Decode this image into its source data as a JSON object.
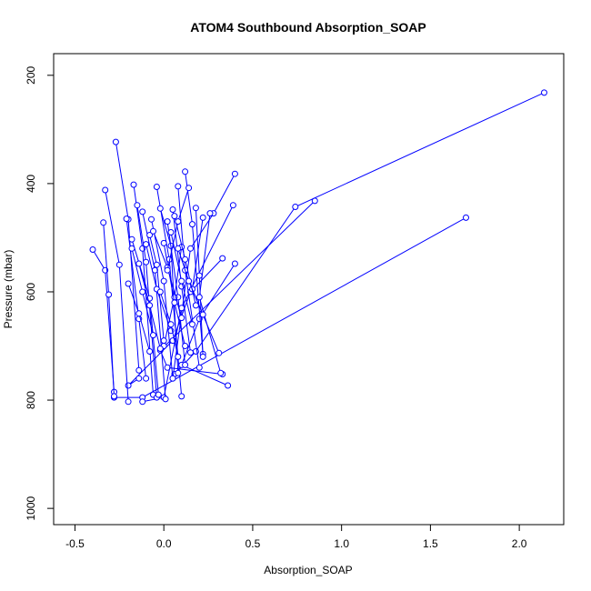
{
  "chart_data": {
    "type": "line",
    "title": "ATOM4 Southbound Absorption_SOAP",
    "xlabel": "Absorption_SOAP",
    "ylabel": "Pressure (mbar)",
    "xlim": [
      -0.62,
      2.25
    ],
    "ylim": [
      1030,
      160
    ],
    "y_reversed": true,
    "x_ticks": [
      -0.5,
      0.0,
      0.5,
      1.0,
      1.5,
      2.0
    ],
    "x_tick_labels": [
      "-0.5",
      "0.0",
      "0.5",
      "1.0",
      "1.5",
      "2.0"
    ],
    "y_ticks": [
      200,
      400,
      600,
      800,
      1000
    ],
    "y_tick_labels": [
      "200",
      "400",
      "600",
      "800",
      "1000"
    ],
    "grid": false,
    "legend": "none",
    "line_color": "#0000ff",
    "marker": "open-circle",
    "series": [
      {
        "x": [
          1.7,
          -0.12,
          -0.28
        ],
        "y": [
          463,
          795,
          795
        ]
      },
      {
        "x": [
          0.85,
          -0.02,
          0.02,
          0.33
        ],
        "y": [
          432,
          708,
          740,
          752
        ]
      },
      {
        "x": [
          2.14,
          0.74,
          0.18,
          0.06
        ],
        "y": [
          232,
          443,
          710,
          752
        ]
      },
      {
        "x": [
          0.4,
          0.28,
          0.15,
          0.05
        ],
        "y": [
          382,
          455,
          520,
          760
        ]
      },
      {
        "x": [
          0.39,
          0.1,
          0.0,
          -0.12
        ],
        "y": [
          440,
          630,
          795,
          803
        ]
      },
      {
        "x": [
          0.4,
          0.2,
          0.1,
          0.36
        ],
        "y": [
          548,
          650,
          735,
          773
        ]
      },
      {
        "x": [
          0.33,
          0.15,
          0.05,
          -0.2,
          -0.14
        ],
        "y": [
          538,
          600,
          690,
          773,
          760
        ]
      },
      {
        "x": [
          -0.4,
          -0.33,
          -0.28
        ],
        "y": [
          522,
          560,
          785
        ]
      },
      {
        "x": [
          -0.34,
          -0.31,
          -0.28
        ],
        "y": [
          472,
          605,
          793
        ]
      },
      {
        "x": [
          -0.33,
          -0.25,
          -0.2
        ],
        "y": [
          412,
          550,
          803
        ]
      },
      {
        "x": [
          -0.27,
          -0.2,
          -0.14
        ],
        "y": [
          323,
          466,
          745
        ]
      },
      {
        "x": [
          -0.17,
          -0.12,
          -0.06
        ],
        "y": [
          402,
          520,
          790
        ]
      },
      {
        "x": [
          -0.15,
          -0.1,
          -0.04
        ],
        "y": [
          440,
          545,
          795
        ]
      },
      {
        "x": [
          -0.18,
          -0.08,
          -0.03
        ],
        "y": [
          503,
          612,
          790
        ]
      },
      {
        "x": [
          -0.12,
          -0.05,
          0.01
        ],
        "y": [
          452,
          560,
          798
        ]
      },
      {
        "x": [
          -0.07,
          0.0,
          0.05
        ],
        "y": [
          466,
          580,
          760
        ]
      },
      {
        "x": [
          -0.04,
          0.03,
          0.1
        ],
        "y": [
          406,
          540,
          793
        ]
      },
      {
        "x": [
          -0.02,
          0.04,
          0.08
        ],
        "y": [
          446,
          515,
          750
        ]
      },
      {
        "x": [
          0.02,
          0.08,
          0.12
        ],
        "y": [
          470,
          610,
          735
        ]
      },
      {
        "x": [
          0.05,
          0.1,
          0.15
        ],
        "y": [
          448,
          590,
          712
        ]
      },
      {
        "x": [
          0.08,
          0.12,
          0.2
        ],
        "y": [
          405,
          560,
          740
        ]
      },
      {
        "x": [
          0.12,
          0.16,
          0.22
        ],
        "y": [
          378,
          475,
          715
        ]
      },
      {
        "x": [
          0.18,
          0.2,
          0.22
        ],
        "y": [
          445,
          570,
          720
        ]
      },
      {
        "x": [
          0.26,
          0.2,
          0.32
        ],
        "y": [
          455,
          610,
          750
        ]
      },
      {
        "x": [
          0.22,
          0.16,
          0.31
        ],
        "y": [
          463,
          595,
          713
        ]
      },
      {
        "x": [
          0.1,
          0.06,
          0.0
        ],
        "y": [
          517,
          610,
          700
        ]
      },
      {
        "x": [
          -0.21,
          -0.14,
          -0.1
        ],
        "y": [
          465,
          650,
          760
        ]
      },
      {
        "x": [
          -0.08,
          -0.04,
          0.0
        ],
        "y": [
          495,
          550,
          690
        ]
      },
      {
        "x": [
          0.0,
          0.06,
          0.12
        ],
        "y": [
          510,
          620,
          700
        ]
      },
      {
        "x": [
          0.04,
          0.1,
          0.16
        ],
        "y": [
          490,
          580,
          660
        ]
      },
      {
        "x": [
          -0.2,
          -0.14,
          -0.08
        ],
        "y": [
          585,
          640,
          710
        ]
      },
      {
        "x": [
          -0.14,
          -0.08,
          -0.02
        ],
        "y": [
          548,
          625,
          705
        ]
      },
      {
        "x": [
          -0.1,
          -0.04,
          0.04
        ],
        "y": [
          512,
          595,
          672
        ]
      },
      {
        "x": [
          -0.06,
          0.02,
          0.1
        ],
        "y": [
          488,
          555,
          648
        ]
      },
      {
        "x": [
          -0.18,
          -0.12,
          -0.06
        ],
        "y": [
          520,
          600,
          680
        ]
      },
      {
        "x": [
          0.06,
          0.12,
          0.18
        ],
        "y": [
          460,
          540,
          625
        ]
      },
      {
        "x": [
          0.08,
          0.14,
          0.22
        ],
        "y": [
          520,
          580,
          642
        ]
      },
      {
        "x": [
          -0.02,
          0.04,
          0.08
        ],
        "y": [
          600,
          660,
          720
        ]
      },
      {
        "x": [
          0.14,
          0.08,
          0.02
        ],
        "y": [
          408,
          470,
          560
        ]
      }
    ]
  }
}
